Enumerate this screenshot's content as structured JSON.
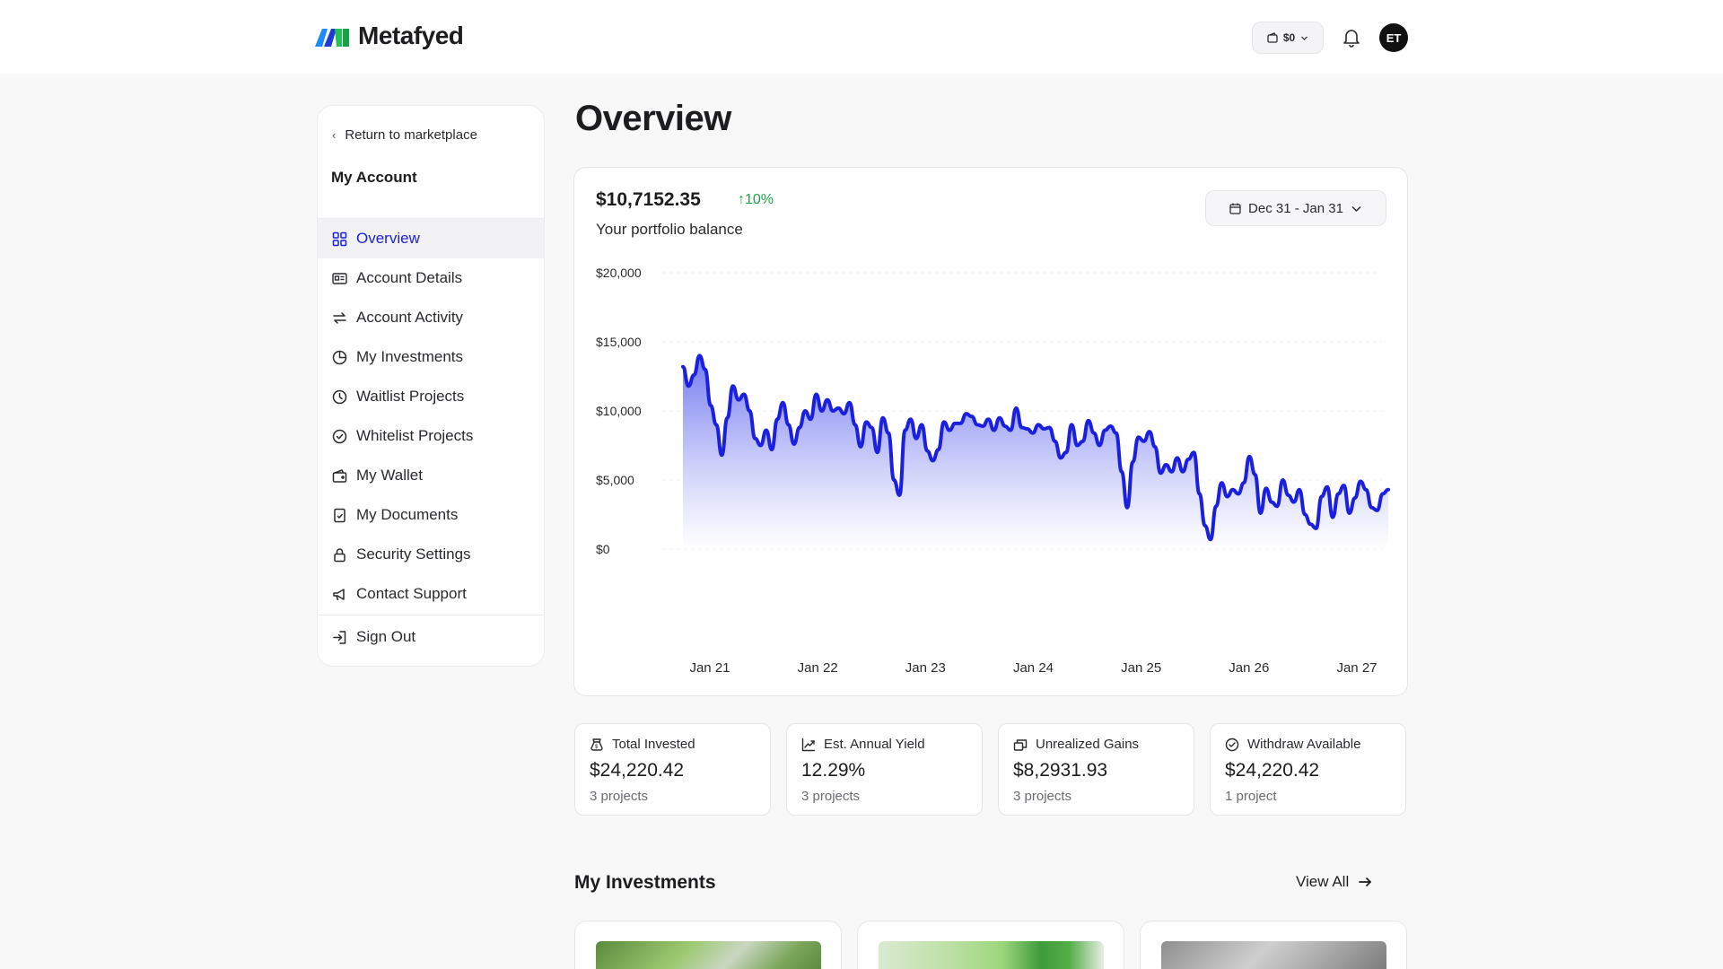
{
  "header": {
    "brand": "Metafyed",
    "wallet_balance": "$0",
    "user_initials": "ET"
  },
  "sidebar": {
    "return_label": "Return to marketplace",
    "section_title": "My Account",
    "items": [
      {
        "label": "Overview",
        "icon": "grid-icon",
        "active": true
      },
      {
        "label": "Account Details",
        "icon": "id-card-icon"
      },
      {
        "label": "Account Activity",
        "icon": "arrows-swap-icon"
      },
      {
        "label": "My Investments",
        "icon": "pie-chart-icon"
      },
      {
        "label": "Waitlist Projects",
        "icon": "clock-icon"
      },
      {
        "label": "Whitelist Projects",
        "icon": "badge-check-icon"
      },
      {
        "label": "My Wallet",
        "icon": "wallet-icon"
      },
      {
        "label": "My Documents",
        "icon": "document-icon"
      },
      {
        "label": "Security Settings",
        "icon": "lock-icon"
      },
      {
        "label": "Contact Support",
        "icon": "megaphone-icon"
      }
    ],
    "signout_label": "Sign Out"
  },
  "main": {
    "title": "Overview",
    "portfolio": {
      "balance": "$10,7152.35",
      "change": "10%",
      "label": "Your portfolio balance",
      "date_range": "Dec 31 - Jan 31"
    },
    "stats": [
      {
        "label": "Total Invested",
        "icon": "money-bag-icon",
        "value": "$24,220.42",
        "sub": "3 projects"
      },
      {
        "label": "Est. Annual Yield",
        "icon": "trend-up-icon",
        "value": "12.29%",
        "sub": "3 projects"
      },
      {
        "label": "Unrealized Gains",
        "icon": "stack-icon",
        "value": "$8,2931.93",
        "sub": "3 projects"
      },
      {
        "label": "Withdraw Available",
        "icon": "check-circle-icon",
        "value": "$24,220.42",
        "sub": "1 project"
      }
    ],
    "investments": {
      "title": "My Investments",
      "view_all": "View All"
    }
  },
  "colors": {
    "accent": "#1a1fe0",
    "positive": "#22a34a"
  },
  "chart_data": {
    "type": "area",
    "title": "",
    "xlabel": "",
    "ylabel": "",
    "ylim": [
      0,
      20000
    ],
    "yticks": [
      "$0",
      "$5,000",
      "$10,000",
      "$15,000",
      "$20,000"
    ],
    "ytick_values": [
      0,
      5000,
      10000,
      15000,
      20000
    ],
    "xticks": [
      "Jan 21",
      "Jan 22",
      "Jan 23",
      "Jan 24",
      "Jan 25",
      "Jan 26",
      "Jan 27"
    ],
    "grid": true,
    "series": [
      {
        "values": [
          13200,
          11800,
          12600,
          14000,
          13000,
          10400,
          9000,
          6800,
          9500,
          11800,
          10800,
          11200,
          10000,
          8000,
          7500,
          8600,
          7200,
          9400,
          10600,
          9000,
          7600,
          8800,
          10000,
          9400,
          11200,
          10000,
          10800,
          10000,
          10200,
          9800,
          10600,
          9000,
          7400,
          9200,
          8800,
          7000,
          9500,
          8400,
          5000,
          3900,
          8600,
          9400,
          8000,
          9000,
          7100,
          6400,
          7200,
          9200,
          8600,
          9100,
          9100,
          9800,
          9600,
          9000,
          8900,
          9400,
          8600,
          9500,
          8900,
          8600,
          10200,
          8800,
          8700,
          8400,
          9000,
          8700,
          8800,
          7800,
          6600,
          7000,
          9000,
          7500,
          7800,
          9300,
          8400,
          7500,
          8600,
          8900,
          8400,
          5600,
          3000,
          6300,
          8100,
          7800,
          8500,
          7400,
          5500,
          6100,
          5600,
          6600,
          5600,
          6500,
          7000,
          4000,
          1700,
          700,
          3100,
          4800,
          3800,
          4300,
          4000,
          4800,
          6700,
          5400,
          2600,
          4400,
          3400,
          3100,
          5000,
          3900,
          3400,
          4300,
          2500,
          1800,
          1500,
          3800,
          4500,
          2300,
          4000,
          4600,
          2600,
          3700,
          4900,
          4300,
          3000,
          2800,
          4000,
          4300
        ]
      }
    ]
  }
}
